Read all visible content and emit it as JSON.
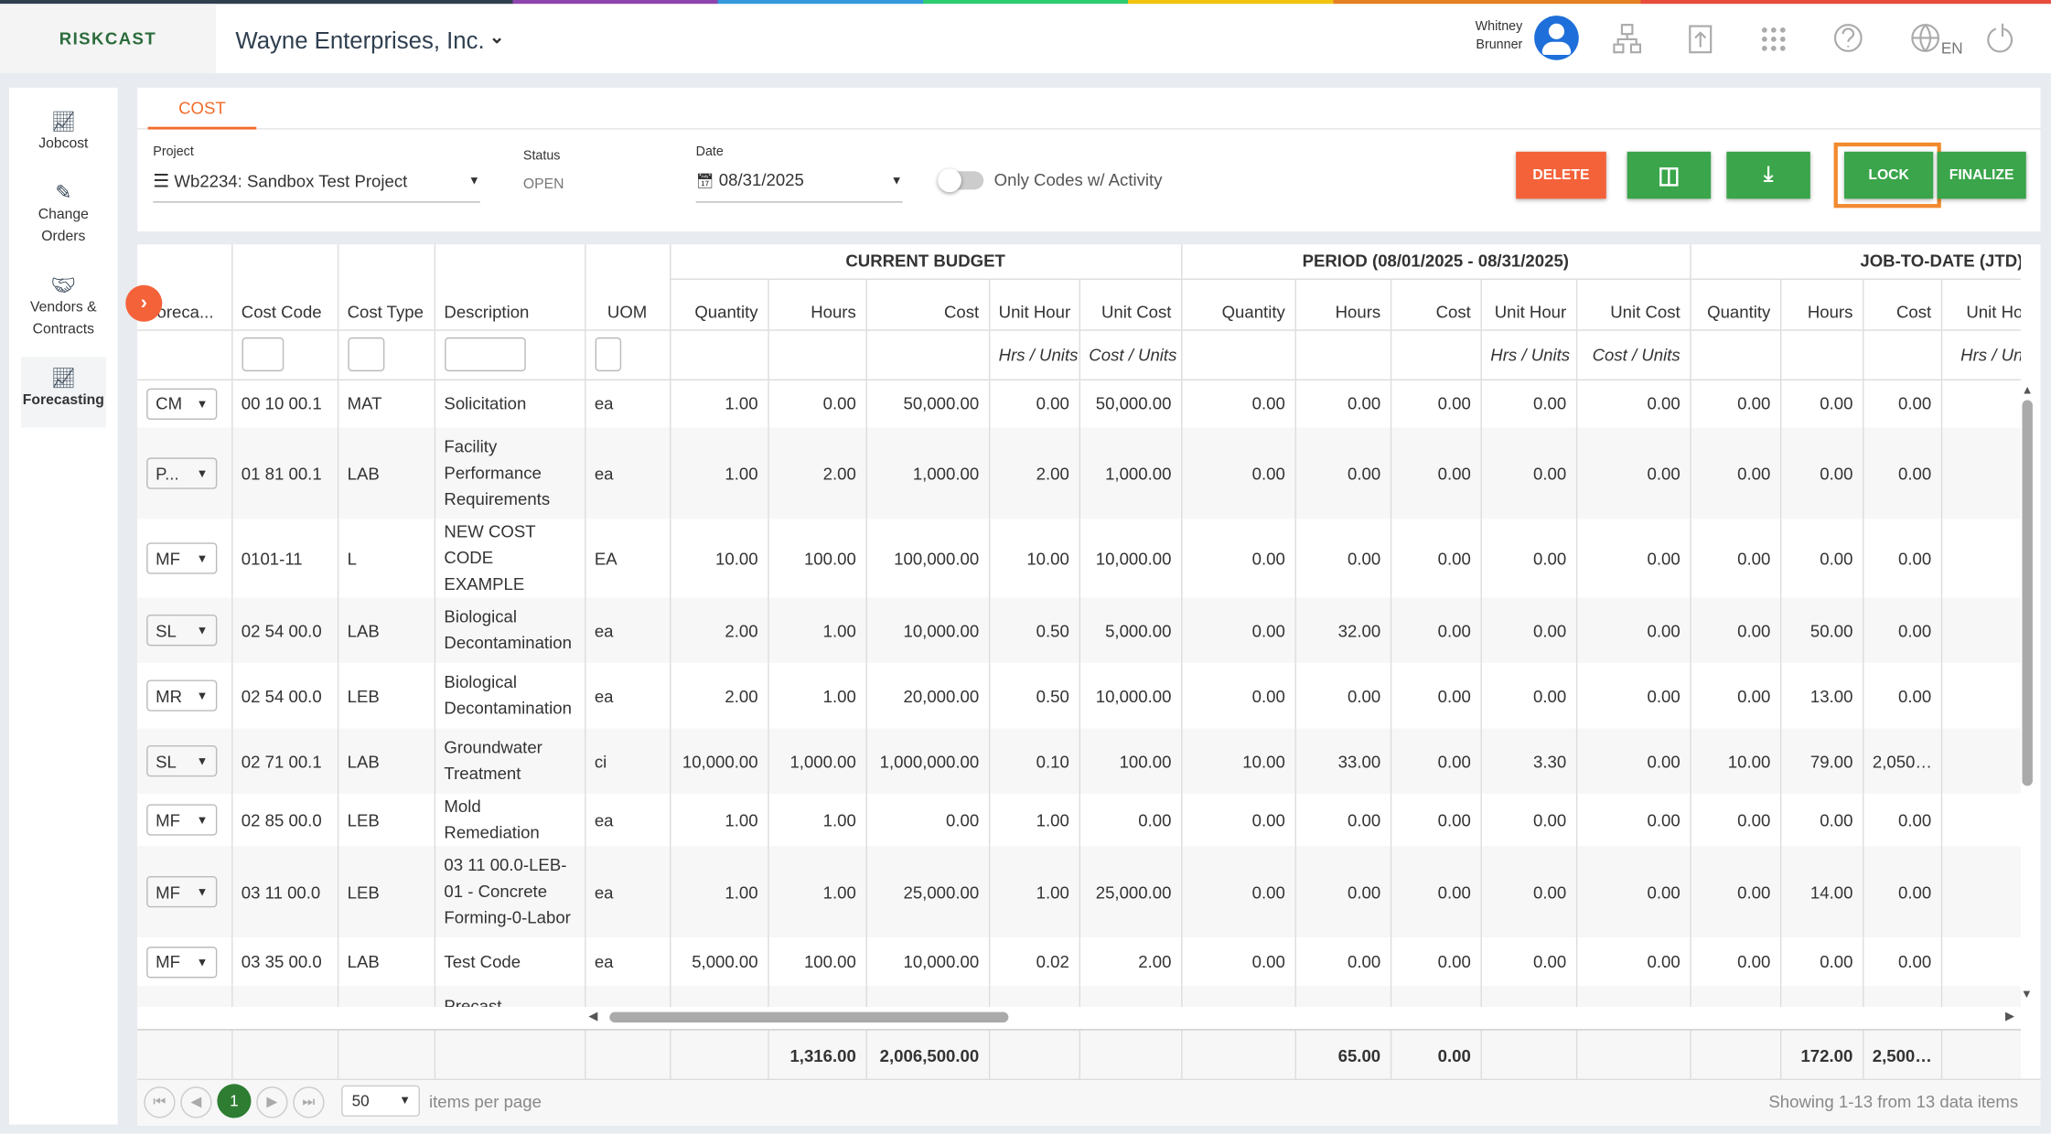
{
  "header": {
    "logo": "RISKCAST",
    "company": "Wayne Enterprises, Inc.",
    "user_first": "Whitney",
    "user_last": "Brunner",
    "lang": "EN"
  },
  "sidebar": [
    "Jobcost",
    "Change Orders",
    "Vendors & Contracts",
    "Forecasting"
  ],
  "tab": "COST",
  "filters": {
    "project_label": "Project",
    "project": "Wb2234: Sandbox Test Project",
    "status_label": "Status",
    "status": "OPEN",
    "date_label": "Date",
    "date": "08/31/2025",
    "toggle": "Only Codes w/ Activity"
  },
  "buttons": {
    "delete": "DELETE",
    "lock": "LOCK",
    "finalize": "FINALIZE"
  },
  "table": {
    "groups": [
      "CURRENT BUDGET",
      "PERIOD (08/01/2025 - 08/31/2025)",
      "JOB-TO-DATE (JTD)"
    ],
    "columns": [
      "Foreca...",
      "Cost Code",
      "Cost Type",
      "Description",
      "UOM",
      "Quantity",
      "Hours",
      "Cost",
      "Unit Hour",
      "Unit Cost",
      "Quantity",
      "Hours",
      "Cost",
      "Unit Hour",
      "Unit Cost",
      "Quantity",
      "Hours",
      "Cost",
      "Unit Ho"
    ],
    "unit_labels": [
      "Hrs / Units",
      "Cost / Units",
      "Hrs / Un"
    ],
    "rows": [
      [
        "CM",
        "00 10 00.1",
        "MAT",
        "Solicitation",
        "ea",
        "1.00",
        "0.00",
        "50,000.00",
        "0.00",
        "50,000.00",
        "0.00",
        "0.00",
        "0.00",
        "0.00",
        "0.00",
        "0.00",
        "0.00",
        "0.00"
      ],
      [
        "P...",
        "01 81 00.1",
        "LAB",
        "Facility Performance Requirements",
        "ea",
        "1.00",
        "2.00",
        "1,000.00",
        "2.00",
        "1,000.00",
        "0.00",
        "0.00",
        "0.00",
        "0.00",
        "0.00",
        "0.00",
        "0.00",
        "0.00"
      ],
      [
        "MF",
        "0101-11",
        "L",
        "NEW COST CODE EXAMPLE",
        "EA",
        "10.00",
        "100.00",
        "100,000.00",
        "10.00",
        "10,000.00",
        "0.00",
        "0.00",
        "0.00",
        "0.00",
        "0.00",
        "0.00",
        "0.00",
        "0.00"
      ],
      [
        "SL",
        "02 54 00.0",
        "LAB",
        "Biological Decontamination",
        "ea",
        "2.00",
        "1.00",
        "10,000.00",
        "0.50",
        "5,000.00",
        "0.00",
        "32.00",
        "0.00",
        "0.00",
        "0.00",
        "0.00",
        "50.00",
        "0.00"
      ],
      [
        "MR",
        "02 54 00.0",
        "LEB",
        "Biological Decontamination",
        "ea",
        "2.00",
        "1.00",
        "20,000.00",
        "0.50",
        "10,000.00",
        "0.00",
        "0.00",
        "0.00",
        "0.00",
        "0.00",
        "0.00",
        "13.00",
        "0.00"
      ],
      [
        "SL",
        "02 71 00.1",
        "LAB",
        "Groundwater Treatment",
        "ci",
        "10,000.00",
        "1,000.00",
        "1,000,000.00",
        "0.10",
        "100.00",
        "10.00",
        "33.00",
        "0.00",
        "3.30",
        "0.00",
        "10.00",
        "79.00",
        "2,050…"
      ],
      [
        "MF",
        "02 85 00.0",
        "LEB",
        "Mold Remediation",
        "ea",
        "1.00",
        "1.00",
        "0.00",
        "1.00",
        "0.00",
        "0.00",
        "0.00",
        "0.00",
        "0.00",
        "0.00",
        "0.00",
        "0.00",
        "0.00"
      ],
      [
        "MF",
        "03 11 00.0",
        "LEB",
        "03 11 00.0-LEB-01 - Concrete Forming-0-Labor",
        "ea",
        "1.00",
        "1.00",
        "25,000.00",
        "1.00",
        "25,000.00",
        "0.00",
        "0.00",
        "0.00",
        "0.00",
        "0.00",
        "0.00",
        "14.00",
        "0.00"
      ],
      [
        "MF",
        "03 35 00.0",
        "LAB",
        "Test Code",
        "ea",
        "5,000.00",
        "100.00",
        "10,000.00",
        "0.02",
        "2.00",
        "0.00",
        "0.00",
        "0.00",
        "0.00",
        "0.00",
        "0.00",
        "0.00",
        "0.00"
      ],
      [
        null,
        null,
        null,
        "Precast",
        null,
        null,
        null,
        null,
        null,
        null,
        null,
        null,
        null,
        null,
        null,
        null,
        null,
        null
      ]
    ],
    "totals": [
      null,
      null,
      null,
      null,
      null,
      null,
      "1,316.00",
      "2,006,500.00",
      null,
      null,
      null,
      "65.00",
      "0.00",
      null,
      null,
      null,
      "172.00",
      "2,500…"
    ]
  },
  "pager": {
    "page": "1",
    "size": "50",
    "size_label": "items per page",
    "summary": "Showing 1-13 from 13 data items"
  }
}
